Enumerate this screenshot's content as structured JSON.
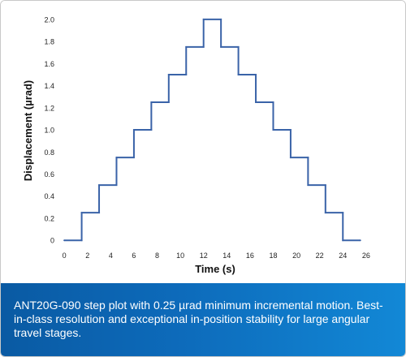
{
  "chart_data": {
    "type": "line",
    "title": "",
    "xlabel": "Time (s)",
    "ylabel": "Displacement (µrad)",
    "xlim": [
      -0.5,
      26.5
    ],
    "ylim": [
      -0.05,
      2.08
    ],
    "x_ticks": [
      0,
      2,
      4,
      6,
      8,
      10,
      12,
      14,
      16,
      18,
      20,
      22,
      24,
      26
    ],
    "y_ticks": [
      0,
      0.2,
      0.4,
      0.6,
      0.8,
      1.0,
      1.2,
      1.4,
      1.6,
      1.8,
      2.0
    ],
    "y_tick_labels": [
      "0",
      "0.2",
      "0.4",
      "0.6",
      "0.8",
      "1.0",
      "1.2",
      "1.4",
      "1.6",
      "1.8",
      "2.0"
    ],
    "grid": false,
    "series": [
      {
        "color": "#3a63a8",
        "x": [
          0,
          1.5,
          1.5,
          3.0,
          3.0,
          4.5,
          4.5,
          6.0,
          6.0,
          7.5,
          7.5,
          9.0,
          9.0,
          10.5,
          10.5,
          12.0,
          12.0,
          13.5,
          13.5,
          15.0,
          15.0,
          16.5,
          16.5,
          18.0,
          18.0,
          19.5,
          19.5,
          21.0,
          21.0,
          22.5,
          22.5,
          24.0,
          24.0,
          25.5
        ],
        "y": [
          0,
          0,
          0.25,
          0.25,
          0.5,
          0.5,
          0.75,
          0.75,
          1.0,
          1.0,
          1.25,
          1.25,
          1.5,
          1.5,
          1.75,
          1.75,
          2.0,
          2.0,
          1.75,
          1.75,
          1.5,
          1.5,
          1.25,
          1.25,
          1.0,
          1.0,
          0.75,
          0.75,
          0.5,
          0.5,
          0.25,
          0.25,
          0,
          0
        ]
      }
    ]
  },
  "caption": {
    "text": "ANT20G-090 step plot with 0.25 µrad minimum incremental motion. Best-in-class resolution and exceptional in-position stability for large angular travel stages."
  }
}
